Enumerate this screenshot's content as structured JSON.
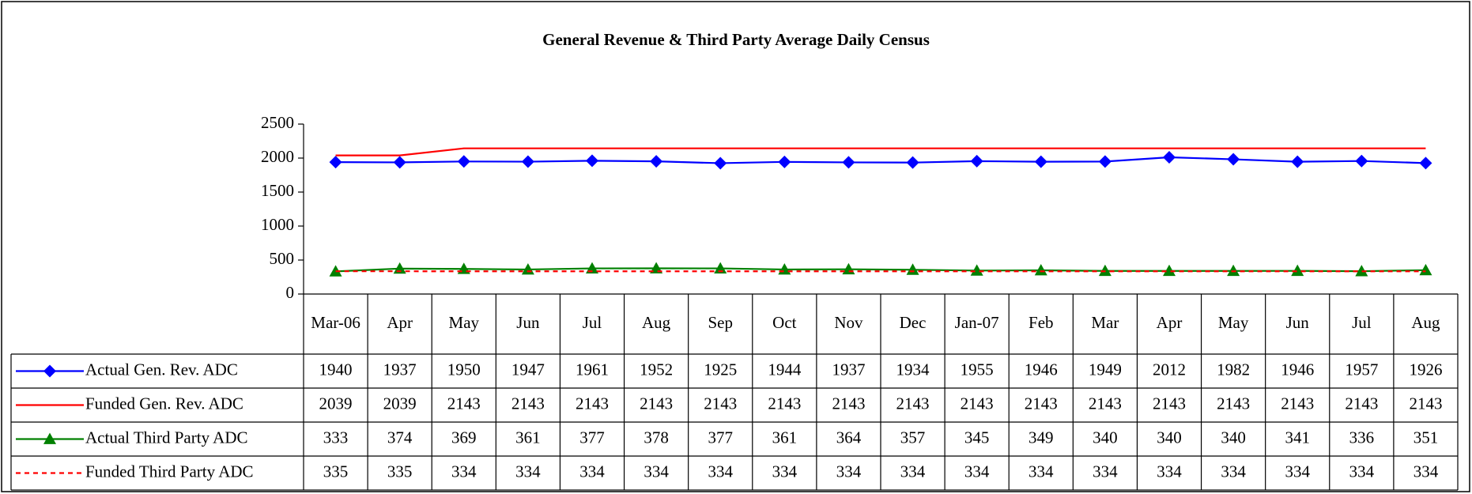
{
  "chart_data": {
    "type": "line",
    "title": "General Revenue & Third Party Average Daily Census",
    "categories": [
      "Mar-06",
      "Apr",
      "May",
      "Jun",
      "Jul",
      "Aug",
      "Sep",
      "Oct",
      "Nov",
      "Dec",
      "Jan-07",
      "Feb",
      "Mar",
      "Apr",
      "May",
      "Jun",
      "Jul",
      "Aug"
    ],
    "series": [
      {
        "name": "Actual Gen. Rev. ADC",
        "color": "#0000ff",
        "marker": "diamond",
        "dashed": false,
        "values": [
          1940,
          1937,
          1950,
          1947,
          1961,
          1952,
          1925,
          1944,
          1937,
          1934,
          1955,
          1946,
          1949,
          2012,
          1982,
          1946,
          1957,
          1926
        ]
      },
      {
        "name": "Funded Gen. Rev. ADC",
        "color": "#ff0000",
        "marker": "none",
        "dashed": false,
        "values": [
          2039,
          2039,
          2143,
          2143,
          2143,
          2143,
          2143,
          2143,
          2143,
          2143,
          2143,
          2143,
          2143,
          2143,
          2143,
          2143,
          2143,
          2143
        ]
      },
      {
        "name": "Actual Third Party ADC",
        "color": "#008000",
        "marker": "triangle",
        "dashed": false,
        "values": [
          333,
          374,
          369,
          361,
          377,
          378,
          377,
          361,
          364,
          357,
          345,
          349,
          340,
          340,
          340,
          341,
          336,
          351
        ]
      },
      {
        "name": "Funded Third Party ADC",
        "color": "#ff0000",
        "marker": "none",
        "dashed": true,
        "values": [
          335,
          335,
          334,
          334,
          334,
          334,
          334,
          334,
          334,
          334,
          334,
          334,
          334,
          334,
          334,
          334,
          334,
          334
        ]
      }
    ],
    "ylim": [
      0,
      2500
    ],
    "yticks": [
      0,
      500,
      1000,
      1500,
      2000,
      2500
    ],
    "grid": false
  }
}
